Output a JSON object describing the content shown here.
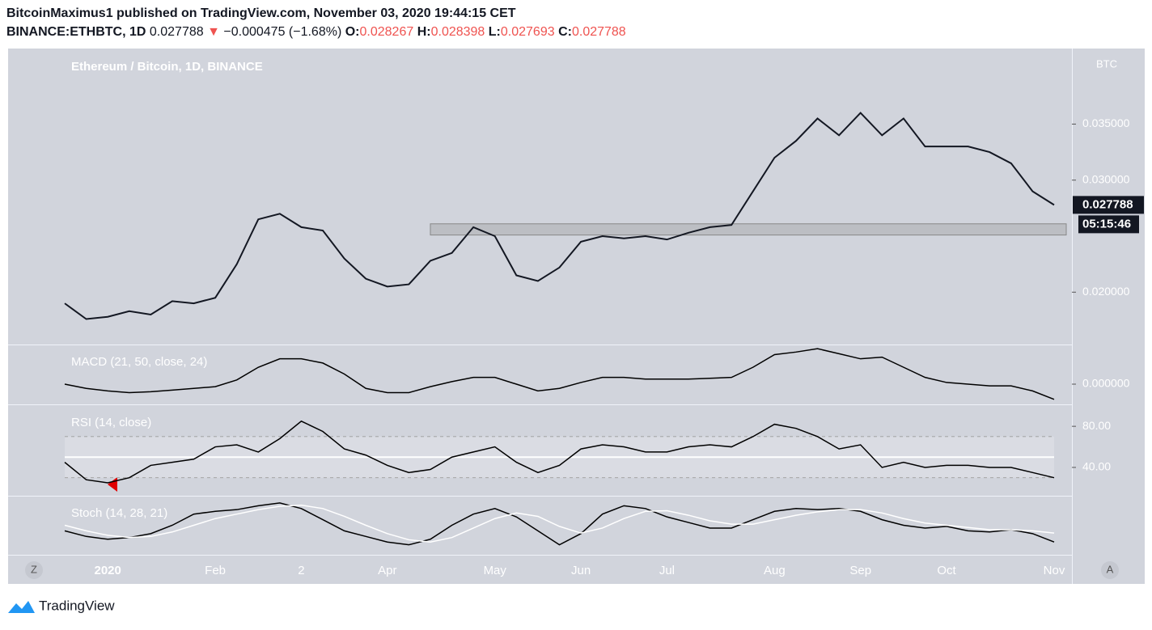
{
  "header": {
    "line1": "BitcoinMaximus1 published on TradingView.com, November 03, 2020 19:44:15 CET",
    "symbol": "BINANCE:ETHBTC, 1D",
    "price": "0.027788",
    "arrow": "▼",
    "change": "−0.000475 (−1.68%)",
    "o_key": "O:",
    "o": "0.028267",
    "h_key": "H:",
    "h": "0.028398",
    "l_key": "L:",
    "l": "0.027693",
    "c_key": "C:",
    "c": "0.027788"
  },
  "chart_data": [
    {
      "type": "line",
      "title": "Ethereum / Bitcoin, 1D, BINANCE",
      "unit": "BTC",
      "color": "#131722",
      "ylim": [
        0.0154,
        0.0416
      ],
      "yticks": [
        {
          "value": 0.02,
          "label": "0.020000"
        },
        {
          "value": 0.03,
          "label": "0.030000"
        },
        {
          "value": 0.035,
          "label": "0.035000"
        }
      ],
      "zone": [
        0.0251,
        0.0261
      ],
      "zone_start": 17,
      "last_label": "0.027788",
      "countdown": "05:15:46",
      "values": [
        0.019,
        0.0176,
        0.0178,
        0.0183,
        0.018,
        0.0192,
        0.019,
        0.0195,
        0.0225,
        0.0265,
        0.027,
        0.0258,
        0.0255,
        0.023,
        0.0212,
        0.0205,
        0.0207,
        0.0228,
        0.0235,
        0.0258,
        0.025,
        0.0215,
        0.021,
        0.0222,
        0.0245,
        0.025,
        0.0248,
        0.025,
        0.0247,
        0.0253,
        0.0258,
        0.026,
        0.029,
        0.032,
        0.0335,
        0.0355,
        0.034,
        0.036,
        0.034,
        0.0355,
        0.033,
        0.033,
        0.033,
        0.0325,
        0.0315,
        0.029,
        0.027788
      ]
    },
    {
      "type": "line",
      "title": "MACD (21, 50, close, 24)",
      "color": "#000000",
      "ylim": [
        -0.0022,
        0.0045
      ],
      "yticks": [
        {
          "value": 0,
          "label": "0.000000"
        }
      ],
      "values": [
        0,
        -0.0005,
        -0.0008,
        -0.001,
        -0.0009,
        -0.0007,
        -0.0005,
        -0.0003,
        0.0005,
        0.002,
        0.003,
        0.003,
        0.0025,
        0.0012,
        -0.0005,
        -0.001,
        -0.001,
        -0.0003,
        0.0003,
        0.0008,
        0.0008,
        0,
        -0.0008,
        -0.0005,
        0.0002,
        0.0008,
        0.0008,
        0.0006,
        0.0006,
        0.0006,
        0.0007,
        0.0008,
        0.002,
        0.0035,
        0.0038,
        0.0042,
        0.0036,
        0.003,
        0.0032,
        0.002,
        0.0008,
        0.0002,
        0,
        -0.0002,
        -0.0002,
        -0.0008,
        -0.0018
      ]
    },
    {
      "type": "line",
      "title": "RSI (14, close)",
      "color": "#000000",
      "ylim": [
        14,
        99
      ],
      "yticks": [
        {
          "value": 40,
          "label": "40.00"
        },
        {
          "value": 80,
          "label": "80.00"
        }
      ],
      "bands": [
        30,
        50,
        70
      ],
      "values": [
        45,
        28,
        25,
        30,
        42,
        45,
        48,
        60,
        62,
        55,
        68,
        85,
        75,
        58,
        52,
        42,
        35,
        38,
        50,
        55,
        60,
        45,
        35,
        42,
        58,
        62,
        60,
        55,
        55,
        60,
        62,
        60,
        70,
        82,
        78,
        70,
        58,
        62,
        40,
        45,
        40,
        42,
        42,
        40,
        40,
        35,
        30
      ]
    },
    {
      "type": "line",
      "title": "Stoch (14, 28, 21)",
      "ylim": [
        0,
        100
      ],
      "categories": [
        null,
        null,
        "2020",
        null,
        null,
        null,
        null,
        "Feb",
        null,
        null,
        null,
        "2",
        null,
        null,
        null,
        "Apr",
        null,
        null,
        null,
        null,
        "May",
        null,
        null,
        null,
        "Jun",
        null,
        null,
        null,
        "Jul",
        null,
        null,
        null,
        null,
        "Aug",
        null,
        null,
        null,
        "Sep",
        null,
        null,
        null,
        "Oct",
        null,
        null,
        null,
        null,
        "Nov"
      ],
      "series": [
        {
          "color": "#000000",
          "values": [
            40,
            30,
            25,
            28,
            35,
            50,
            70,
            75,
            78,
            85,
            90,
            80,
            60,
            40,
            30,
            20,
            15,
            25,
            50,
            70,
            80,
            65,
            40,
            15,
            35,
            70,
            85,
            80,
            65,
            55,
            45,
            45,
            60,
            75,
            80,
            78,
            80,
            75,
            60,
            50,
            45,
            48,
            40,
            38,
            42,
            35,
            20
          ]
        },
        {
          "color": "#ffffff",
          "values": [
            50,
            40,
            32,
            28,
            30,
            38,
            50,
            62,
            70,
            78,
            84,
            86,
            80,
            66,
            50,
            35,
            24,
            20,
            28,
            45,
            62,
            72,
            66,
            48,
            36,
            45,
            62,
            75,
            76,
            68,
            58,
            52,
            52,
            60,
            68,
            74,
            78,
            78,
            72,
            62,
            54,
            50,
            46,
            42,
            42,
            40,
            36
          ]
        }
      ]
    }
  ],
  "axis_letters": {
    "left": "Z",
    "right": "A"
  },
  "footer": "TradingView"
}
